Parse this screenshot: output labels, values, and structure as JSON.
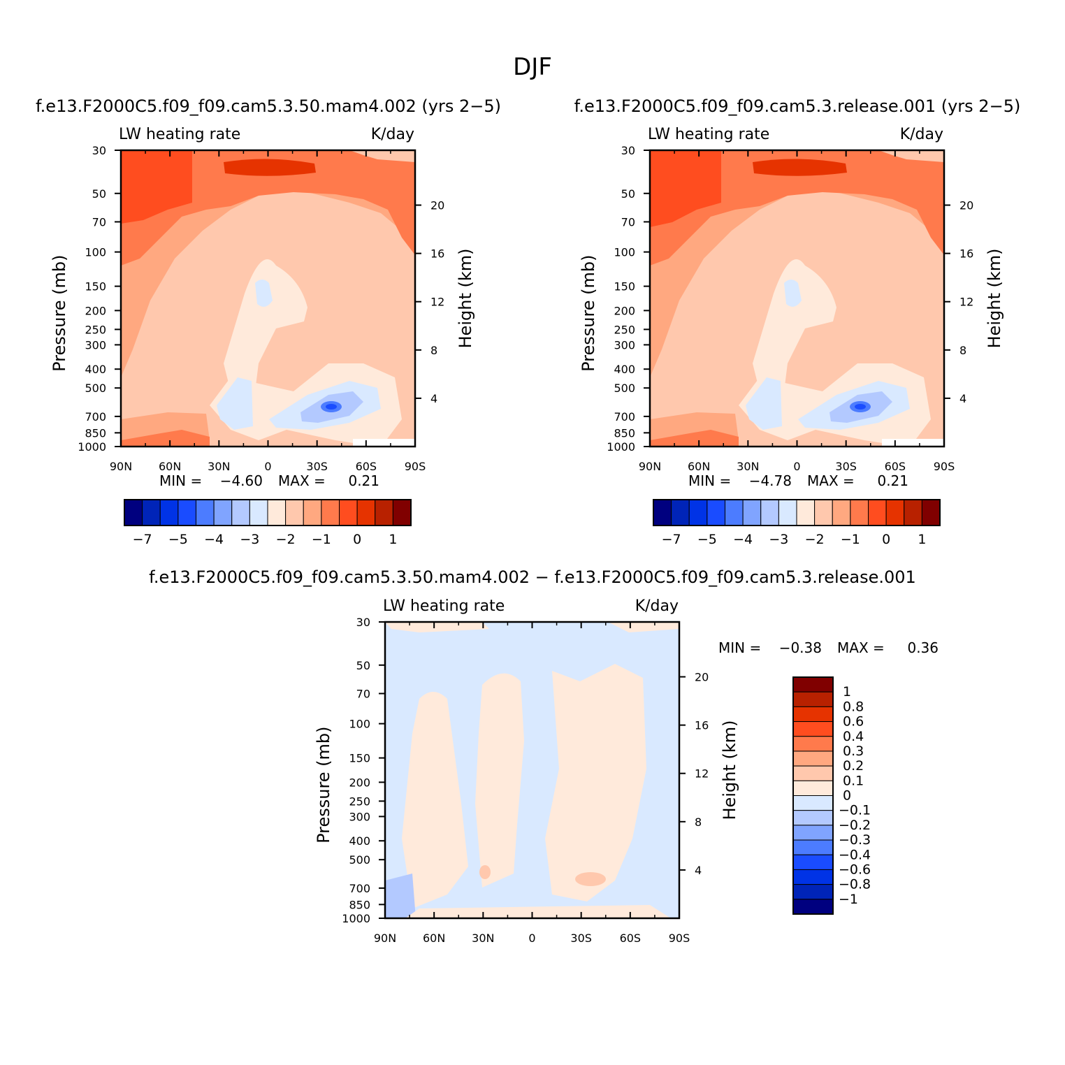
{
  "page": {
    "title": "DJF"
  },
  "colors": {
    "abs_levels": [
      "#00007f",
      "#0024b8",
      "#0033e6",
      "#1a4cff",
      "#4c7cff",
      "#80a4ff",
      "#b3c9ff",
      "#d9e9ff",
      "#ffeadb",
      "#ffc8ad",
      "#ffa880",
      "#ff7a4c",
      "#ff4d1f",
      "#e63300",
      "#b82100",
      "#800000"
    ],
    "diff_levels": [
      "#00007f",
      "#0024b8",
      "#0033e6",
      "#1a4cff",
      "#4c7cff",
      "#80a4ff",
      "#b3c9ff",
      "#d9e9ff",
      "#ffeadb",
      "#ffc8ad",
      "#ffa880",
      "#ff7a4c",
      "#ff4d1f",
      "#e63300",
      "#b82100",
      "#800000"
    ]
  },
  "chart_data": [
    {
      "type": "heatmap",
      "title": "f.e13.F2000C5.f09_f09.cam5.3.50.mam4.002 (yrs 2−5)",
      "left_label": "LW heating rate",
      "right_label": "K/day",
      "ylabel": "Pressure (mb)",
      "ylabel_right": "Height (km)",
      "x_ticks": [
        "90N",
        "60N",
        "30N",
        "0",
        "30S",
        "60S",
        "90S"
      ],
      "y_ticks": [
        "30",
        "50",
        "70",
        "100",
        "150",
        "200",
        "250",
        "300",
        "400",
        "500",
        "700",
        "850",
        "1000"
      ],
      "y_ticks_right": [
        "20",
        "16",
        "12",
        "8",
        "4"
      ],
      "stats": {
        "min_label": "MIN =",
        "min": "−4.60",
        "max_label": "MAX =",
        "max": "0.21"
      },
      "colorbar": {
        "orientation": "horizontal",
        "labels": [
          "−7",
          "−5",
          "−4",
          "−3",
          "−2",
          "−1",
          "0",
          "1"
        ]
      }
    },
    {
      "type": "heatmap",
      "title": "f.e13.F2000C5.f09_f09.cam5.3.release.001 (yrs 2−5)",
      "left_label": "LW heating rate",
      "right_label": "K/day",
      "ylabel": "Pressure (mb)",
      "ylabel_right": "Height (km)",
      "x_ticks": [
        "90N",
        "60N",
        "30N",
        "0",
        "30S",
        "60S",
        "90S"
      ],
      "y_ticks": [
        "30",
        "50",
        "70",
        "100",
        "150",
        "200",
        "250",
        "300",
        "400",
        "500",
        "700",
        "850",
        "1000"
      ],
      "y_ticks_right": [
        "20",
        "16",
        "12",
        "8",
        "4"
      ],
      "stats": {
        "min_label": "MIN =",
        "min": "−4.78",
        "max_label": "MAX =",
        "max": "0.21"
      },
      "colorbar": {
        "orientation": "horizontal",
        "labels": [
          "−7",
          "−5",
          "−4",
          "−3",
          "−2",
          "−1",
          "0",
          "1"
        ]
      }
    },
    {
      "type": "heatmap",
      "title": "f.e13.F2000C5.f09_f09.cam5.3.50.mam4.002 − f.e13.F2000C5.f09_f09.cam5.3.release.001",
      "left_label": "LW heating rate",
      "right_label": "K/day",
      "ylabel": "Pressure (mb)",
      "ylabel_right": "Height (km)",
      "x_ticks": [
        "90N",
        "60N",
        "30N",
        "0",
        "30S",
        "60S",
        "90S"
      ],
      "y_ticks": [
        "30",
        "50",
        "70",
        "100",
        "150",
        "200",
        "250",
        "300",
        "400",
        "500",
        "700",
        "850",
        "1000"
      ],
      "y_ticks_right": [
        "20",
        "16",
        "12",
        "8",
        "4"
      ],
      "stats": {
        "min_label": "MIN =",
        "min": "−0.38",
        "max_label": "MAX =",
        "max": "0.36"
      },
      "colorbar": {
        "orientation": "vertical",
        "labels": [
          "1",
          "0.8",
          "0.6",
          "0.4",
          "0.3",
          "0.2",
          "0.1",
          "0",
          "−0.1",
          "−0.2",
          "−0.3",
          "−0.4",
          "−0.6",
          "−0.8",
          "−1"
        ]
      }
    }
  ]
}
